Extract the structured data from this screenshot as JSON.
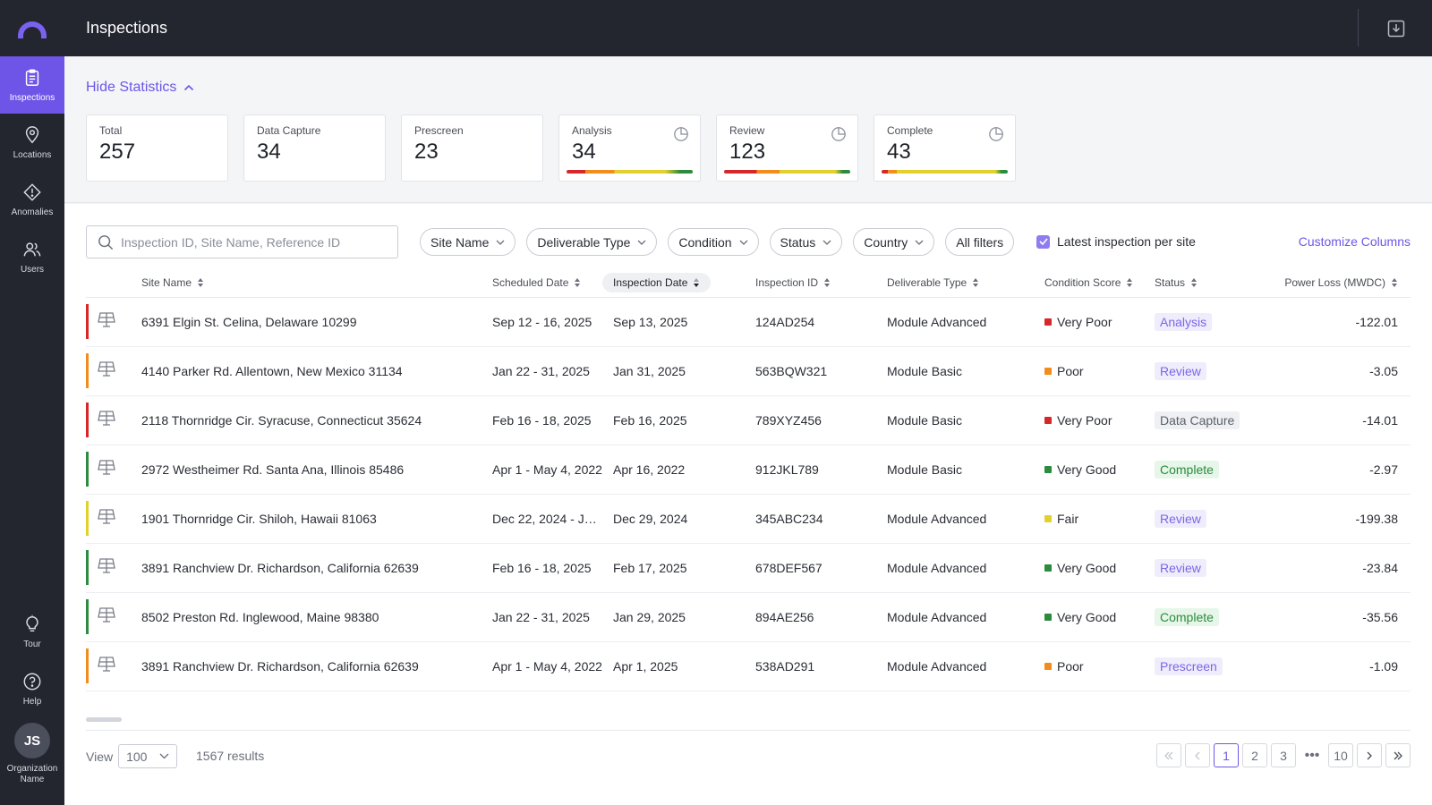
{
  "app": {
    "title": "Inspections"
  },
  "sidebar": {
    "items": [
      {
        "label": "Inspections",
        "icon": "clipboard-icon",
        "active": true
      },
      {
        "label": "Locations",
        "icon": "map-pin-icon"
      },
      {
        "label": "Anomalies",
        "icon": "warning-diamond-icon"
      },
      {
        "label": "Users",
        "icon": "users-icon"
      }
    ],
    "bottom": [
      {
        "label": "Tour",
        "icon": "lightbulb-icon"
      },
      {
        "label": "Help",
        "icon": "help-circle-icon"
      }
    ],
    "avatar_initials": "JS",
    "org_name": "Organization Name"
  },
  "stats": {
    "toggle_label": "Hide Statistics",
    "cards": [
      {
        "label": "Total",
        "value": "257"
      },
      {
        "label": "Data Capture",
        "value": "34"
      },
      {
        "label": "Prescreen",
        "value": "23"
      },
      {
        "label": "Analysis",
        "value": "34"
      },
      {
        "label": "Review",
        "value": "123"
      },
      {
        "label": "Complete",
        "value": "43"
      }
    ]
  },
  "filters": {
    "search_placeholder": "Inspection ID, Site Name, Reference ID",
    "pills": [
      "Site Name",
      "Deliverable Type",
      "Condition",
      "Status",
      "Country",
      "All filters"
    ],
    "latest_label": "Latest inspection per site",
    "customize_label": "Customize Columns"
  },
  "table": {
    "headers": {
      "site": "Site Name",
      "scheduled": "Scheduled Date",
      "inspection": "Inspection Date",
      "id": "Inspection ID",
      "deliverable": "Deliverable Type",
      "condition": "Condition Score",
      "status": "Status",
      "power": "Power Loss (MWDC)"
    },
    "rows": [
      {
        "site": "6391 Elgin St. Celina, Delaware 10299",
        "scheduled": "Sep 12 - 16, 2025",
        "inspection": "Sep 13, 2025",
        "id": "124AD254",
        "deliverable": "Module Advanced",
        "condition": "Very Poor",
        "status": "Analysis",
        "power": "-122.01"
      },
      {
        "site": "4140 Parker Rd. Allentown, New Mexico 31134",
        "scheduled": "Jan 22 - 31, 2025",
        "inspection": "Jan 31, 2025",
        "id": "563BQW321",
        "deliverable": "Module Basic",
        "condition": "Poor",
        "status": "Review",
        "power": "-3.05"
      },
      {
        "site": "2118 Thornridge Cir. Syracuse, Connecticut 35624",
        "scheduled": "Feb 16 - 18, 2025",
        "inspection": "Feb 16, 2025",
        "id": "789XYZ456",
        "deliverable": "Module Basic",
        "condition": "Very Poor",
        "status": "Data Capture",
        "power": "-14.01"
      },
      {
        "site": "2972 Westheimer Rd. Santa Ana, Illinois 85486",
        "scheduled": "Apr 1 - May 4, 2022",
        "inspection": "Apr 16, 2022",
        "id": "912JKL789",
        "deliverable": "Module Basic",
        "condition": "Very Good",
        "status": "Complete",
        "power": "-2.97"
      },
      {
        "site": "1901 Thornridge Cir. Shiloh, Hawaii 81063",
        "scheduled": "Dec 22, 2024 - Jan...",
        "inspection": "Dec 29, 2024",
        "id": "345ABC234",
        "deliverable": "Module Advanced",
        "condition": "Fair",
        "status": "Review",
        "power": "-199.38"
      },
      {
        "site": "3891 Ranchview Dr. Richardson, California 62639",
        "scheduled": "Feb 16 - 18, 2025",
        "inspection": "Feb 17, 2025",
        "id": "678DEF567",
        "deliverable": "Module Advanced",
        "condition": "Very Good",
        "status": "Review",
        "power": "-23.84"
      },
      {
        "site": "8502 Preston Rd. Inglewood, Maine 98380",
        "scheduled": "Jan 22 - 31, 2025",
        "inspection": "Jan 29, 2025",
        "id": "894AE256",
        "deliverable": "Module Advanced",
        "condition": "Very Good",
        "status": "Complete",
        "power": "-35.56"
      },
      {
        "site": "3891 Ranchview Dr. Richardson, California 62639",
        "scheduled": "Apr 1 - May 4, 2022",
        "inspection": "Apr 1, 2025",
        "id": "538AD291",
        "deliverable": "Module Advanced",
        "condition": "Poor",
        "status": "Prescreen",
        "power": "-1.09"
      }
    ]
  },
  "footer": {
    "view_label": "View",
    "page_size": "100",
    "results": "1567 results",
    "pages": [
      "1",
      "2",
      "3",
      "10"
    ],
    "current_page": "1"
  },
  "colors": {
    "accent": "#6e55e8",
    "very_poor": "#d62828",
    "poor": "#f28c1c",
    "fair": "#e2d12c",
    "very_good": "#2c8b3e"
  }
}
